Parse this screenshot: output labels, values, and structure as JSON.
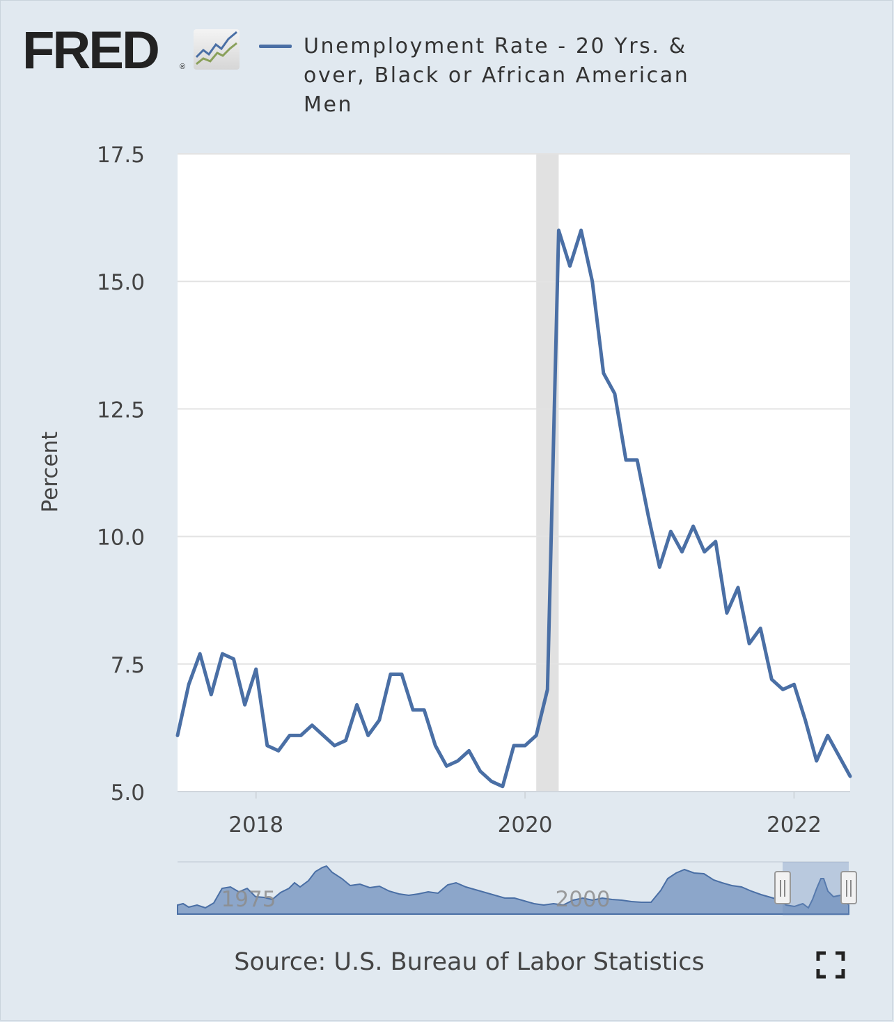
{
  "brand": {
    "name": "FRED",
    "registered": "®"
  },
  "legend": {
    "series_label": "Unemployment Rate - 20 Yrs. & over, Black or African American Men"
  },
  "source_text": "Source: U.S. Bureau of Labor Statistics",
  "icons": {
    "fullscreen": "fullscreen-icon",
    "logo_graph": "fred-graph-icon"
  },
  "colors": {
    "line": "#4a6fa5",
    "recession": "#e1e1e1",
    "navigator_fill": "#6f8fbd",
    "background": "#e1e9f0"
  },
  "navigator": {
    "year_labels": [
      "1975",
      "2000"
    ]
  },
  "chart_data": {
    "type": "line",
    "title": "Unemployment Rate - 20 Yrs. & over, Black or African American Men",
    "ylabel": "Percent",
    "xlabel": "",
    "ylim": [
      5.0,
      17.5
    ],
    "yticks": [
      "5.0",
      "7.5",
      "10.0",
      "12.5",
      "15.0",
      "17.5"
    ],
    "xticks": [
      "2018",
      "2020",
      "2022"
    ],
    "recession": {
      "start": "2020-02",
      "end": "2020-04"
    },
    "series": [
      {
        "name": "Unemployment Rate - 20 Yrs. & over, Black or African American Men",
        "start": "2017-06",
        "frequency": "monthly",
        "values": [
          6.1,
          7.1,
          7.7,
          6.9,
          7.7,
          7.6,
          6.7,
          7.4,
          5.9,
          5.8,
          6.1,
          6.1,
          6.3,
          6.1,
          5.9,
          6.0,
          6.7,
          6.1,
          6.4,
          7.3,
          7.3,
          6.6,
          6.6,
          5.9,
          5.5,
          5.6,
          5.8,
          5.4,
          5.2,
          5.1,
          5.9,
          5.9,
          6.1,
          7.0,
          16.0,
          15.3,
          16.0,
          15.0,
          13.2,
          12.8,
          11.5,
          11.5,
          10.4,
          9.4,
          10.1,
          9.7,
          10.2,
          9.7,
          9.9,
          8.5,
          9.0,
          7.9,
          8.2,
          7.2,
          7.0,
          7.1,
          6.4,
          5.6,
          6.1,
          5.7,
          5.3
        ]
      }
    ]
  }
}
